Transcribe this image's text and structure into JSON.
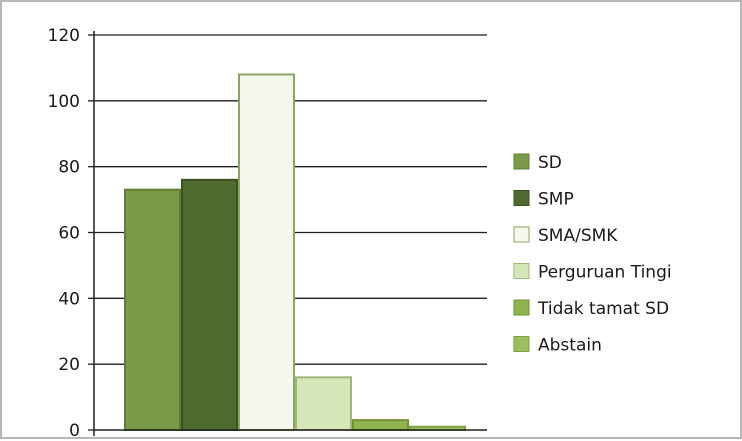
{
  "chart_data": {
    "type": "bar",
    "title": "",
    "xlabel": "",
    "ylabel": "",
    "ylim": [
      0,
      120
    ],
    "yticks": [
      0,
      20,
      40,
      60,
      80,
      100,
      120
    ],
    "grid": true,
    "legend_position": "right",
    "series": [
      {
        "name": "SD",
        "value": 73,
        "color": "#7a9a4a",
        "edge": "#5f7d35"
      },
      {
        "name": "SMP",
        "value": 76,
        "color": "#4f6a2e",
        "edge": "#3a5221"
      },
      {
        "name": "SMA/SMK",
        "value": 108,
        "color": "#f4f8ec",
        "edge": "#8aa564"
      },
      {
        "name": "Perguruan Tingi",
        "value": 16,
        "color": "#d6e6b8",
        "edge": "#9db779"
      },
      {
        "name": "Tidak tamat SD",
        "value": 3,
        "color": "#8fb34f",
        "edge": "#6f9237"
      },
      {
        "name": "Abstain",
        "value": 1,
        "color": "#9bbf5c",
        "edge": "#7ea145"
      }
    ]
  }
}
